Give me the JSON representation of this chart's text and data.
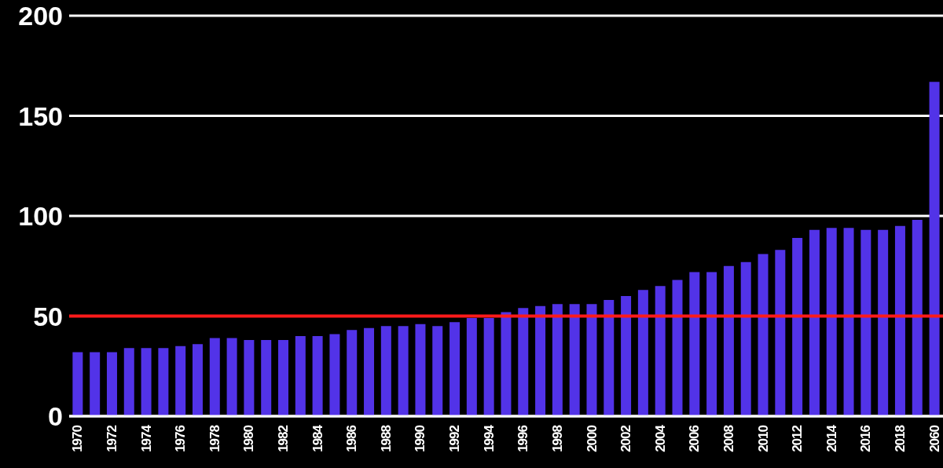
{
  "chart_data": {
    "type": "bar",
    "categories": [
      "1970",
      null,
      "1972",
      null,
      "1974",
      null,
      "1976",
      null,
      "1978",
      null,
      "1980",
      null,
      "1982",
      null,
      "1984",
      null,
      "1986",
      null,
      "1988",
      null,
      "1990",
      null,
      "1992",
      null,
      "1994",
      null,
      "1996",
      null,
      "1998",
      null,
      "2000",
      null,
      "2002",
      null,
      "2004",
      null,
      "2006",
      null,
      "2008",
      null,
      "2010",
      null,
      "2012",
      null,
      "2014",
      null,
      "2016",
      null,
      "2018",
      null,
      "2060"
    ],
    "values": [
      32,
      32,
      32,
      34,
      34,
      34,
      35,
      36,
      39,
      39,
      38,
      38,
      38,
      40,
      40,
      41,
      43,
      44,
      45,
      45,
      46,
      45,
      47,
      49,
      49,
      52,
      54,
      55,
      56,
      56,
      56,
      58,
      60,
      63,
      65,
      68,
      72,
      72,
      75,
      77,
      81,
      83,
      89,
      93,
      94,
      94,
      93,
      93,
      95,
      98,
      167
    ],
    "color": "#5233e8",
    "ylim": [
      0,
      200
    ],
    "yticks": [
      0,
      50,
      100,
      150,
      200
    ],
    "grid": "y",
    "ref_lines": [
      {
        "axis": "y",
        "value": 50,
        "color": "#ff1a1a"
      }
    ]
  }
}
